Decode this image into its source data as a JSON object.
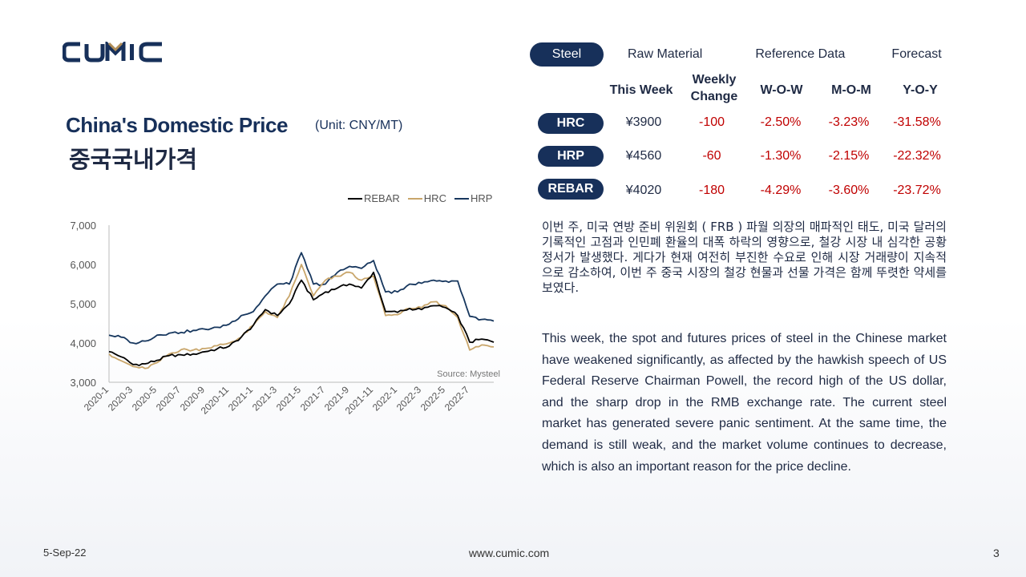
{
  "brand": {
    "logo_text": "CUMIC",
    "color": "#17305a",
    "accent": "#b08d57"
  },
  "tabs": [
    {
      "label": "Steel",
      "active": true
    },
    {
      "label": "Raw Material",
      "active": false
    },
    {
      "label": "Reference Data",
      "active": false
    },
    {
      "label": "Forecast",
      "active": false
    }
  ],
  "chart_title": {
    "en": "China's Domestic Price",
    "unit": "(Unit: CNY/MT)",
    "kr": "중국국내가격"
  },
  "table": {
    "headers": {
      "this_week": "This Week",
      "weekly_change_1": "Weekly",
      "weekly_change_2": "Change",
      "wow": "W-O-W",
      "mom": "M-O-M",
      "yoy": "Y-O-Y"
    },
    "rows": [
      {
        "name": "HRC",
        "price": "¥3900",
        "change": "-100",
        "wow": "-2.50%",
        "mom": "-3.23%",
        "yoy": "-31.58%"
      },
      {
        "name": "HRP",
        "price": "¥4560",
        "change": "-60",
        "wow": "-1.30%",
        "mom": "-2.15%",
        "yoy": "-22.32%"
      },
      {
        "name": "REBAR",
        "price": "¥4020",
        "change": "-180",
        "wow": "-4.29%",
        "mom": "-3.60%",
        "yoy": "-23.72%"
      }
    ],
    "negative_color": "#c00000"
  },
  "commentary": {
    "kr": "이번 주, 미국 연방 준비 위원회 ( FRB ) 파월 의장의 매파적인 태도, 미국 달러의 기록적인 고점과 인민폐 환율의 대폭 하락의 영향으로, 철강 시장 내 심각한 공황 정서가 발생했다. 게다가 현재 여전히 부진한 수요로 인해 시장 거래량이 지속적으로 감소하여, 이번 주 중국 시장의 철강 현물과 선물 가격은 함께 뚜렷한 약세를 보였다.",
    "en": "This week, the spot and futures prices of steel in the Chinese market have weakened significantly, as affected by the hawkish speech of US Federal Reserve Chairman Powell, the record high of the US dollar, and the sharp drop in the RMB exchange rate. The current steel market has generated severe panic sentiment. At the same time, the demand is still weak, and the market volume continues to decrease, which is also an important reason for the price decline."
  },
  "chart_data": {
    "type": "line",
    "source": "Source: Mysteel",
    "ylim": [
      3000,
      7000
    ],
    "yticks": [
      "3,000",
      "4,000",
      "5,000",
      "6,000",
      "7,000"
    ],
    "ytick_values": [
      3000,
      4000,
      5000,
      6000,
      7000
    ],
    "xticks": [
      "2020-1",
      "2020-3",
      "2020-5",
      "2020-7",
      "2020-9",
      "2020-11",
      "2021-1",
      "2021-3",
      "2021-5",
      "2021-7",
      "2021-9",
      "2021-11",
      "2022-1",
      "2022-3",
      "2022-5",
      "2022-7"
    ],
    "x_months": [
      0,
      1,
      2,
      3,
      4,
      5,
      6,
      7,
      8,
      9,
      10,
      11,
      12,
      13,
      14,
      15,
      16,
      17,
      18,
      19,
      20,
      21,
      22,
      23,
      24,
      25,
      26,
      27,
      28,
      29,
      30,
      31,
      32
    ],
    "legend_position": "top-right",
    "grid": false,
    "series": [
      {
        "name": "REBAR",
        "color": "#000000",
        "values": [
          3780,
          3650,
          3450,
          3470,
          3560,
          3680,
          3700,
          3720,
          3780,
          3850,
          3920,
          4150,
          4450,
          4850,
          4700,
          5000,
          5600,
          5100,
          5300,
          5400,
          5500,
          5400,
          5800,
          4800,
          4780,
          4880,
          4850,
          4950,
          4900,
          4700,
          4020,
          4100,
          4020
        ]
      },
      {
        "name": "HRC",
        "color": "#c9a66b",
        "values": [
          3720,
          3550,
          3400,
          3350,
          3500,
          3720,
          3830,
          3820,
          3860,
          3930,
          4000,
          4150,
          4450,
          4800,
          4650,
          5200,
          6000,
          5200,
          5600,
          5700,
          5800,
          5600,
          5700,
          4700,
          4720,
          4880,
          4900,
          5050,
          4950,
          4650,
          3820,
          3950,
          3900
        ]
      },
      {
        "name": "HRP",
        "color": "#17375e",
        "values": [
          4200,
          4150,
          4000,
          4050,
          4200,
          4250,
          4270,
          4320,
          4350,
          4400,
          4480,
          4700,
          4800,
          5200,
          5500,
          5500,
          6300,
          5500,
          5500,
          5800,
          5950,
          5900,
          6100,
          5300,
          5300,
          5500,
          5520,
          5600,
          5580,
          5580,
          4680,
          4600,
          4560
        ]
      }
    ]
  },
  "footer": {
    "date": "5-Sep-22",
    "url": "www.cumic.com",
    "page": "3"
  }
}
